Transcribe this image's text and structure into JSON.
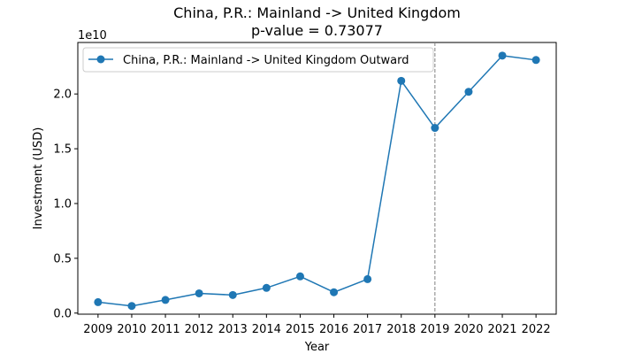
{
  "chart_data": {
    "type": "line",
    "title": "China, P.R.: Mainland -> United Kingdom",
    "subtitle": "p-value = 0.73077",
    "xlabel": "Year",
    "ylabel": "Investment (USD)",
    "y_offset_label": "1e10",
    "x": [
      2009,
      2010,
      2011,
      2012,
      2013,
      2014,
      2015,
      2016,
      2017,
      2018,
      2019,
      2020,
      2021,
      2022
    ],
    "x_tick_labels": [
      "2009",
      "2010",
      "2011",
      "2012",
      "2013",
      "2014",
      "2015",
      "2016",
      "2017",
      "2018",
      "2019",
      "2020",
      "2021",
      "2022"
    ],
    "series": [
      {
        "name": "China, P.R.: Mainland -> United Kingdom Outward",
        "color": "#1f77b4",
        "values": [
          1000000000.0,
          650000000.0,
          1200000000.0,
          1800000000.0,
          1650000000.0,
          2300000000.0,
          3350000000.0,
          1900000000.0,
          3100000000.0,
          21200000000.0,
          16900000000.0,
          20200000000.0,
          23500000000.0,
          23100000000.0
        ]
      }
    ],
    "y_ticks": [
      0,
      5000000000.0,
      10000000000.0,
      15000000000.0,
      20000000000.0
    ],
    "y_tick_labels": [
      "0.0",
      "0.5",
      "1.0",
      "1.5",
      "2.0"
    ],
    "xlim": [
      2008.4,
      2022.6
    ],
    "ylim": [
      -100000000.0,
      24700000000.0
    ],
    "vertical_line": {
      "x": 2019,
      "style": "dashed",
      "color": "#808080"
    },
    "legend_position": "upper-left",
    "grid": false
  }
}
